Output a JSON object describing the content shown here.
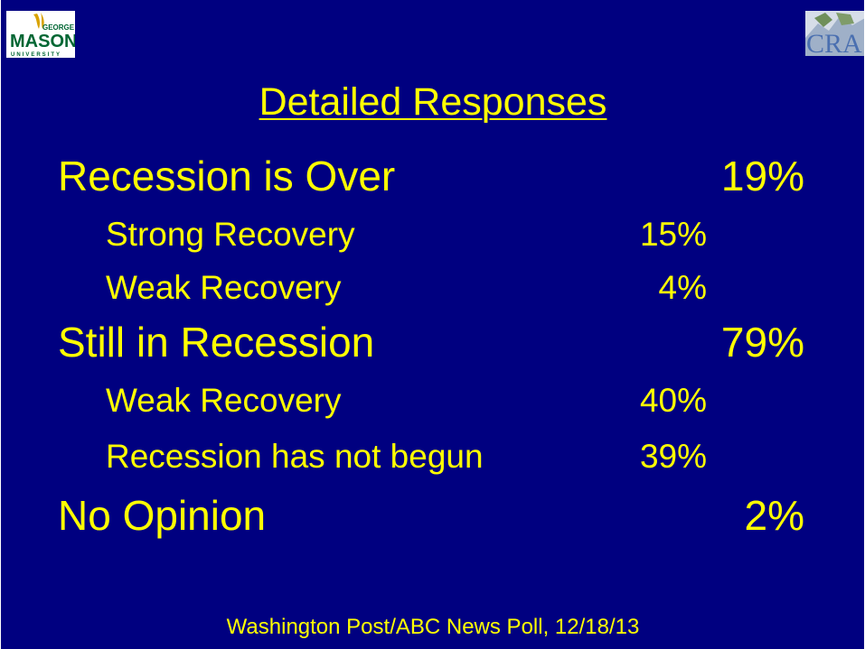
{
  "logos": {
    "left_text_top": "GEORGE",
    "left_text_main": "MASON",
    "left_text_bottom": "UNIVERSITY",
    "right_text": "CRA"
  },
  "slide": {
    "title": "Detailed Responses",
    "rows": [
      {
        "label": "Recession is Over",
        "value": "19%"
      },
      {
        "label": "Strong Recovery",
        "value": "15%"
      },
      {
        "label": "Weak Recovery",
        "value": "4%"
      },
      {
        "label": "Still in Recession",
        "value": "79%"
      },
      {
        "label": "Weak Recovery",
        "value": "40%"
      },
      {
        "label": "Recession has not begun",
        "value": "39%"
      },
      {
        "label": "No Opinion",
        "value": "2%"
      }
    ],
    "source": "Washington Post/ABC News Poll, 12/18/13"
  },
  "colors": {
    "background": "#000080",
    "text": "#ffff00"
  }
}
